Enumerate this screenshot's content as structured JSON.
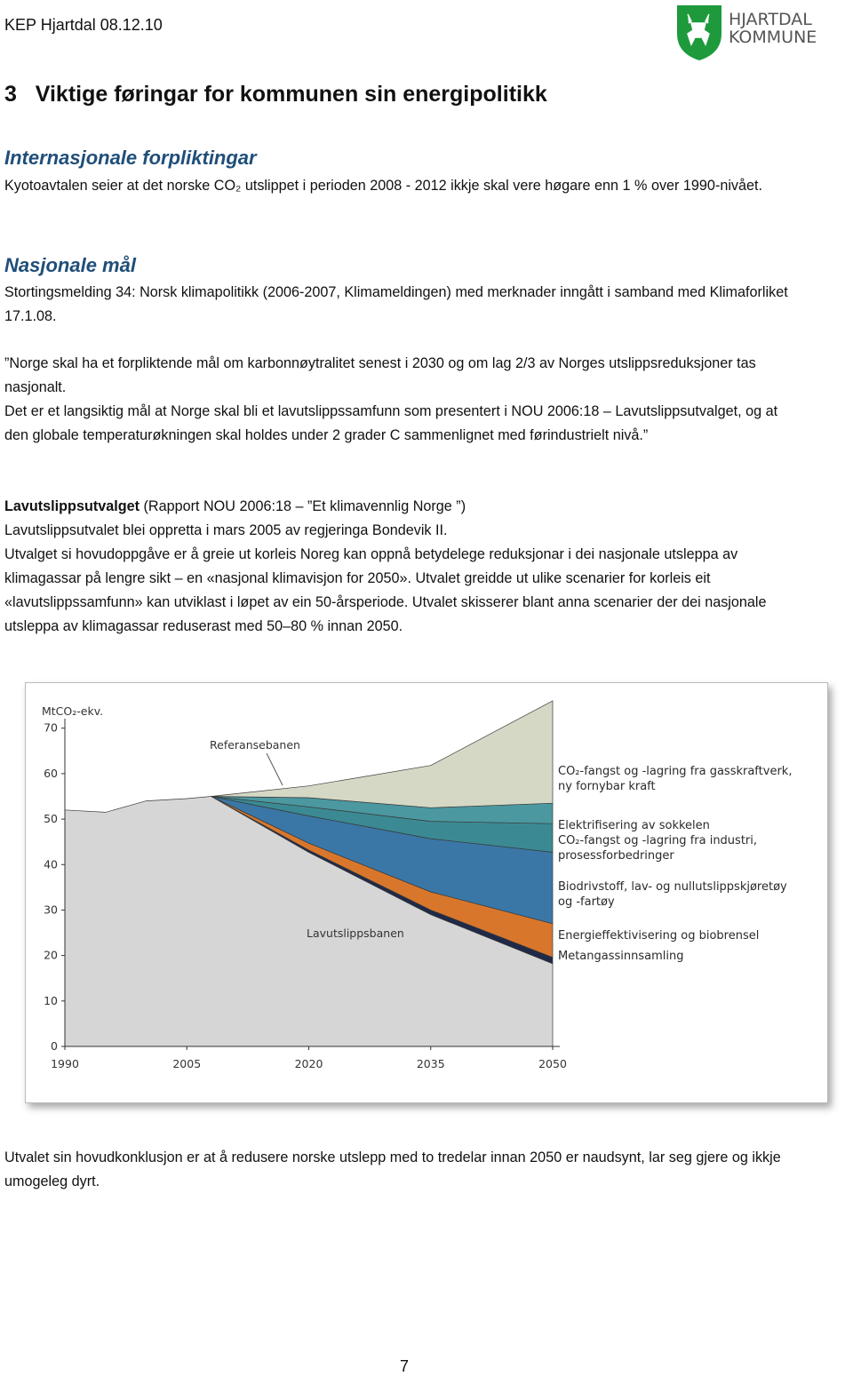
{
  "header": {
    "text": "KEP Hjartdal 08.12.10",
    "logo_line1": "HJARTDAL",
    "logo_line2": "KOMMUNE"
  },
  "heading": "3   Viktige føringar for kommunen sin energipolitikk",
  "sections": [
    {
      "title": "Internasjonale forpliktingar",
      "paragraphs": [
        "Kyotoavtalen seier at det norske CO₂ utslippet i perioden 2008 - 2012 ikkje skal vere høgare enn 1 % over 1990-nivået."
      ]
    },
    {
      "title": "Nasjonale mål",
      "paragraphs": [
        "Stortingsmelding 34: Norsk klimapolitikk (2006-2007, Klimameldingen) med merknader inngått i samband med Klimaforliket 17.1.08.",
        "”Norge skal ha et forpliktende mål om karbonnøytralitet senest i 2030 og om lag 2/3 av Norges utslippsreduksjoner tas nasjonalt.",
        "Det er et langsiktig mål at Norge skal bli et lavutslippssamfunn som presentert i NOU 2006:18 – Lavutslippsutvalget,  og at den globale temperaturøkningen skal holdes under 2 grader C sammenlignet med førindustrielt nivå.”"
      ]
    }
  ],
  "lavut": {
    "bold": "Lavutslippsutvalget",
    "rest": " (Rapport NOU 2006:18 – ”Et klimavennlig Norge ”)",
    "line2": "Lavutslippsutvalet blei oppretta i mars 2005 av regjeringa Bondevik II.",
    "para": "Utvalget si hovudoppgåve er å greie ut korleis Noreg kan oppnå betydelege reduksjonar i dei nasjonale utsleppa av klimagassar på lengre sikt – en «nasjonal klimavisjon for 2050». Utvalet greidde ut ulike scenarier for korleis eit «lavutslippssamfunn» kan utviklast i løpet av ein 50-årsperiode. Utvalet skisserer blant anna scenarier der dei nasjonale utsleppa av klimagassar reduserast med 50–80 % innan 2050."
  },
  "chart_data": {
    "type": "stacked_area",
    "y_label": "MtCO₂-ekv.",
    "annotation": "Referansebanen",
    "x": [
      1990,
      1995,
      2000,
      2005,
      2008,
      2020,
      2035,
      2050
    ],
    "xlim": [
      1990,
      2050
    ],
    "xticks": [
      1990,
      2005,
      2020,
      2035,
      2050
    ],
    "ylim": [
      0,
      76
    ],
    "yticks": [
      0,
      10,
      20,
      30,
      40,
      50,
      60,
      70
    ],
    "grid": false,
    "series": [
      {
        "name": "Lavutslippsbanen",
        "color": "#d6d6d6",
        "values": [
          52,
          51.5,
          54,
          54.5,
          55,
          42.7,
          29,
          18.2
        ]
      },
      {
        "name": "Metangassinnsamling",
        "color": "#1f2a48",
        "values": [
          null,
          null,
          null,
          null,
          0,
          0.5,
          1,
          1.4
        ]
      },
      {
        "name": "Energieffektivisering og biobrensel",
        "color": "#d8772c",
        "values": [
          null,
          null,
          null,
          null,
          0,
          1.5,
          4,
          7.4
        ]
      },
      {
        "name": "Biodrivstoff, lav- og nullutslippskjøretøy og -fartøy",
        "color": "#3a77a6",
        "values": [
          null,
          null,
          null,
          null,
          0,
          6,
          11.7,
          15.7
        ]
      },
      {
        "name": "CO₂-fangst og -lagring fra industri, prosessforbedringer",
        "color": "#3b8a93",
        "values": [
          null,
          null,
          null,
          null,
          0,
          2,
          3.8,
          6.3
        ]
      },
      {
        "name": "Elektrifisering av sokkelen",
        "color": "#4b98a0",
        "values": [
          null,
          null,
          null,
          null,
          0,
          2,
          3,
          4.5
        ]
      },
      {
        "name": "CO₂-fangst og -lagring fra gasskraftverk, ny fornybar kraft",
        "color": "#d5d8c5",
        "values": [
          null,
          null,
          null,
          null,
          0,
          2.6,
          9.3,
          22.5
        ]
      }
    ]
  },
  "closing": "Utvalet sin hovudkonklusjon er at å redusere norske utslepp med to tredelar innan 2050 er naudsynt, lar seg gjere og ikkje umogeleg dyrt.",
  "page_number": "7"
}
